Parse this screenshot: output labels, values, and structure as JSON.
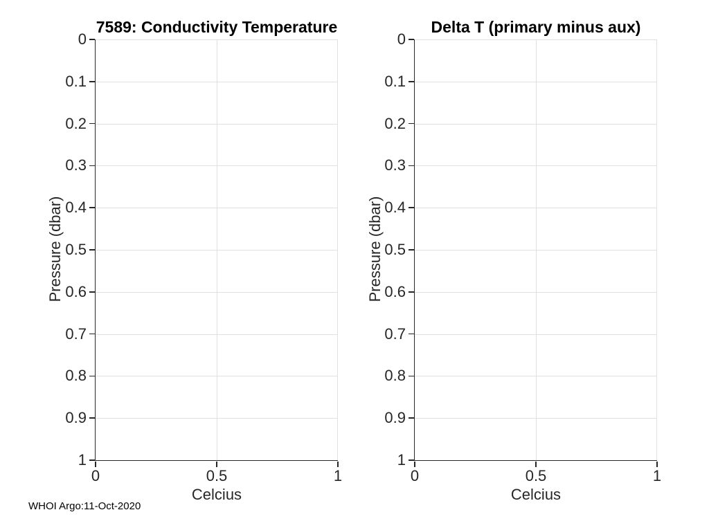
{
  "figure": {
    "footer": "WHOI Argo:11-Oct-2020"
  },
  "chart_data": [
    {
      "type": "line",
      "title": "7589: Conductivity Temperature",
      "xlabel": "Celcius",
      "ylabel": "Pressure (dbar)",
      "xlim": [
        0,
        1
      ],
      "ylim": [
        0,
        1
      ],
      "y_axis_direction": "reversed",
      "grid": true,
      "legend": null,
      "series": [],
      "xticks": [
        {
          "v": 0,
          "label": "0"
        },
        {
          "v": 0.5,
          "label": "0.5"
        },
        {
          "v": 1,
          "label": "1"
        }
      ],
      "yticks": [
        {
          "v": 0,
          "label": "0"
        },
        {
          "v": 0.1,
          "label": "0.1"
        },
        {
          "v": 0.2,
          "label": "0.2"
        },
        {
          "v": 0.3,
          "label": "0.3"
        },
        {
          "v": 0.4,
          "label": "0.4"
        },
        {
          "v": 0.5,
          "label": "0.5"
        },
        {
          "v": 0.6,
          "label": "0.6"
        },
        {
          "v": 0.7,
          "label": "0.7"
        },
        {
          "v": 0.8,
          "label": "0.8"
        },
        {
          "v": 0.9,
          "label": "0.9"
        },
        {
          "v": 1,
          "label": "1"
        }
      ]
    },
    {
      "type": "line",
      "title": "Delta T (primary minus aux)",
      "xlabel": "Celcius",
      "ylabel": "Pressure (dbar)",
      "xlim": [
        0,
        1
      ],
      "ylim": [
        0,
        1
      ],
      "y_axis_direction": "reversed",
      "grid": true,
      "legend": null,
      "series": [],
      "xticks": [
        {
          "v": 0,
          "label": "0"
        },
        {
          "v": 0.5,
          "label": "0.5"
        },
        {
          "v": 1,
          "label": "1"
        }
      ],
      "yticks": [
        {
          "v": 0,
          "label": "0"
        },
        {
          "v": 0.1,
          "label": "0.1"
        },
        {
          "v": 0.2,
          "label": "0.2"
        },
        {
          "v": 0.3,
          "label": "0.3"
        },
        {
          "v": 0.4,
          "label": "0.4"
        },
        {
          "v": 0.5,
          "label": "0.5"
        },
        {
          "v": 0.6,
          "label": "0.6"
        },
        {
          "v": 0.7,
          "label": "0.7"
        },
        {
          "v": 0.8,
          "label": "0.8"
        },
        {
          "v": 0.9,
          "label": "0.9"
        },
        {
          "v": 1,
          "label": "1"
        }
      ]
    }
  ],
  "colors": {
    "axis": "#262626",
    "grid": "#e0e0e0",
    "background": "#ffffff"
  }
}
